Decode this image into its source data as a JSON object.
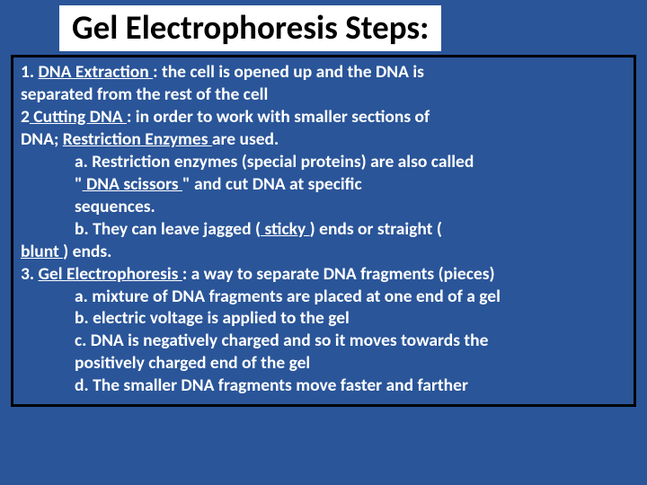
{
  "slide": {
    "title": "Gel Electrophoresis Steps:",
    "background_color": "#2a5599",
    "title_bg": "#ffffff",
    "title_color": "#000000",
    "text_color": "#ffffff",
    "border_color": "#000000",
    "font_family": "Calibri",
    "font_size_body": 19.5,
    "font_size_title": 37,
    "lines": {
      "l1a": "1. ",
      "l1b": "  DNA Extraction      ",
      "l1c": ": the cell is opened up and the DNA is",
      "l2": "separated from the rest of the cell",
      "l3a": "2",
      "l3b": "     Cutting DNA       ",
      "l3c": ": in order to work with smaller sections of",
      "l4a": "DNA;  ",
      "l4b": "      Restriction Enzymes      ",
      "l4c": "are used.",
      "l5": "a. Restriction enzymes (special proteins) are also called",
      "l6a": "\"",
      "l6b": "      DNA scissors       ",
      "l6c": "\" and cut DNA at specific",
      "l7": "sequences.",
      "l8a": "b. They can leave jagged (",
      "l8b": "    sticky ",
      "l8c": ")   ends or straight (",
      "l8d": "    ",
      "l9a": "blunt    ",
      "l9b": ") ends.",
      "l10a": "3. ",
      "l10b": " Gel Electrophoresis  ",
      "l10c": ": a way to separate DNA fragments (pieces)",
      "l11": "a. mixture of DNA fragments are placed at one end of a gel",
      "l12": "b. electric voltage is applied to the gel",
      "l13": "c. DNA is negatively charged and so it moves towards the",
      "l14": "positively charged end of the gel",
      "l15": "d. The smaller DNA fragments move faster and farther"
    }
  }
}
